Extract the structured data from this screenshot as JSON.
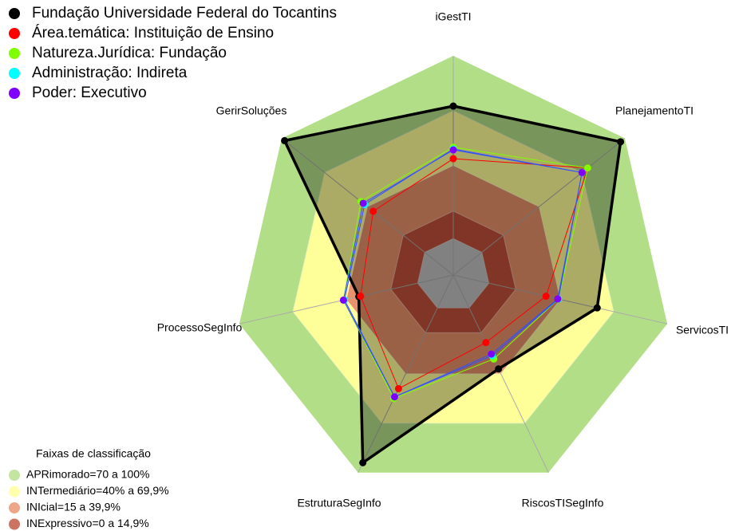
{
  "chart_data": {
    "type": "radar",
    "categories": [
      "iGestTI",
      "PlanejamentoTI",
      "ServicosTI",
      "RiscosTISegInfo",
      "EstruturaSegInfo",
      "ProcessoSegInfo",
      "GerirSoluções"
    ],
    "rlim": [
      -20,
      100
    ],
    "series": [
      {
        "name": "Fundação Universidade Federal do Tocantins",
        "color": "#000000",
        "values": [
          72.5,
          97,
          60.7,
          37,
          94,
          33,
          98
        ]
      },
      {
        "name": "Área.temática: Instituição de Ensino",
        "color": "#ff0000",
        "values": [
          43.7,
          74,
          32,
          21,
          49,
          32,
          36
        ]
      },
      {
        "name": "Natureza.Jurídica: Fundação",
        "color": "#80ff00",
        "values": [
          50,
          74,
          39,
          31,
          55,
          41.6,
          44.6
        ]
      },
      {
        "name": "Administração: Indireta",
        "color": "#00ffff",
        "values": [
          49,
          70,
          39,
          29,
          54,
          41,
          42
        ]
      },
      {
        "name": "Poder: Executivo",
        "color": "#8000ff",
        "values": [
          48.5,
          70,
          38.6,
          28,
          54,
          41.6,
          43
        ]
      }
    ],
    "bands_title": "Faixas de classificação",
    "bands": [
      {
        "label": "APRimorado=70 a 100%",
        "from": 70,
        "to": 100,
        "color": "#b3de88"
      },
      {
        "label": "INTermediário=40% a 69,9%",
        "from": 40,
        "to": 69.9,
        "color": "#ffff99"
      },
      {
        "label": "INIcial=15 a 39,9%",
        "from": 15,
        "to": 39.9,
        "color": "#e8916a"
      },
      {
        "label": "INExpressivo=0 a 14,9%",
        "from": 0,
        "to": 14.9,
        "color": "#c0503a"
      }
    ],
    "center_color": "#c0c0c0"
  }
}
